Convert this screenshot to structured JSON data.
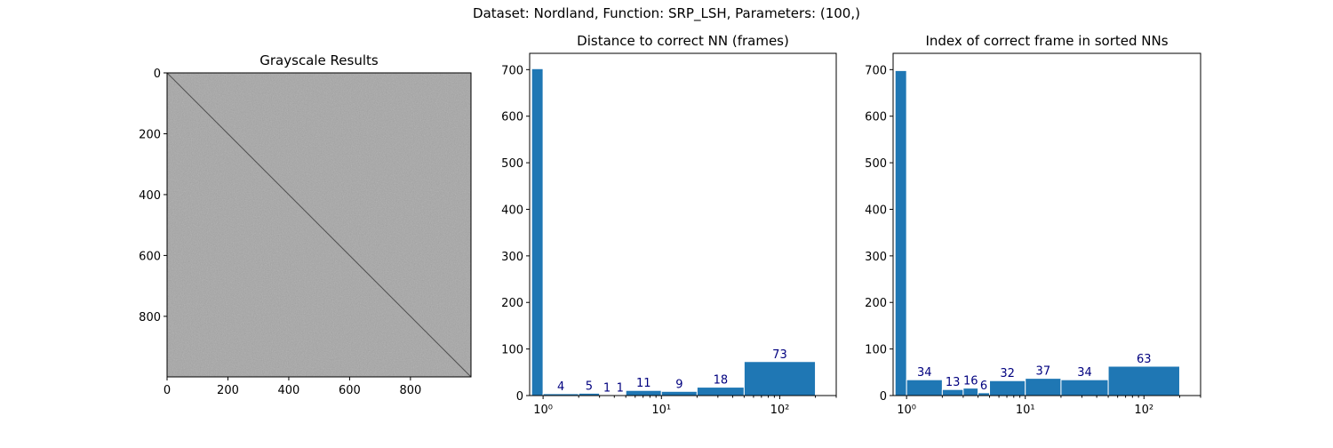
{
  "suptitle": "Dataset:  Nordland,  Function:  SRP_LSH, Parameters: (100,)",
  "colors": {
    "bar": "#1f77b4",
    "bar_edge": "#ffffff",
    "label": "#00007f",
    "image_bg": "#a6a6a6",
    "diagonal": "#505050"
  },
  "chart_data": [
    {
      "type": "heatmap",
      "title": "Grayscale Results",
      "xlim": [
        0,
        999
      ],
      "ylim": [
        999,
        0
      ],
      "xticks": [
        0,
        200,
        400,
        600,
        800
      ],
      "yticks": [
        0,
        200,
        400,
        600,
        800
      ],
      "colormap": "gray",
      "feature": "diagonal"
    },
    {
      "type": "bar",
      "title": "Distance to correct NN (frames)",
      "xscale": "log",
      "xlim": [
        0.77,
        300
      ],
      "ylim": [
        0,
        735
      ],
      "yticks": [
        0,
        100,
        200,
        300,
        400,
        500,
        600,
        700
      ],
      "xticks": [
        {
          "value": 1,
          "label": "10⁰"
        },
        {
          "value": 10,
          "label": "10¹"
        },
        {
          "value": 100,
          "label": "10²"
        }
      ],
      "bins": [
        {
          "x0": 0.8,
          "x1": 1.0,
          "value": 702,
          "label": ""
        },
        {
          "x0": 1.0,
          "x1": 2.0,
          "value": 4,
          "label": "4"
        },
        {
          "x0": 2.0,
          "x1": 3.0,
          "value": 5,
          "label": "5"
        },
        {
          "x0": 3.0,
          "x1": 4.0,
          "value": 1,
          "label": "1"
        },
        {
          "x0": 4.0,
          "x1": 5.0,
          "value": 1,
          "label": "1"
        },
        {
          "x0": 5.0,
          "x1": 10.0,
          "value": 11,
          "label": "11"
        },
        {
          "x0": 10.0,
          "x1": 20.0,
          "value": 9,
          "label": "9"
        },
        {
          "x0": 20.0,
          "x1": 50.0,
          "value": 18,
          "label": "18"
        },
        {
          "x0": 50.0,
          "x1": 200.0,
          "value": 73,
          "label": "73"
        }
      ]
    },
    {
      "type": "bar",
      "title": "Index of correct frame in sorted NNs",
      "xscale": "log",
      "xlim": [
        0.77,
        300
      ],
      "ylim": [
        0,
        735
      ],
      "yticks": [
        0,
        100,
        200,
        300,
        400,
        500,
        600,
        700
      ],
      "xticks": [
        {
          "value": 1,
          "label": "10⁰"
        },
        {
          "value": 10,
          "label": "10¹"
        },
        {
          "value": 100,
          "label": "10²"
        }
      ],
      "bins": [
        {
          "x0": 0.8,
          "x1": 1.0,
          "value": 698,
          "label": ""
        },
        {
          "x0": 1.0,
          "x1": 2.0,
          "value": 34,
          "label": "34"
        },
        {
          "x0": 2.0,
          "x1": 3.0,
          "value": 13,
          "label": "13"
        },
        {
          "x0": 3.0,
          "x1": 4.0,
          "value": 16,
          "label": "16"
        },
        {
          "x0": 4.0,
          "x1": 5.0,
          "value": 6,
          "label": "6"
        },
        {
          "x0": 5.0,
          "x1": 10.0,
          "value": 32,
          "label": "32"
        },
        {
          "x0": 10.0,
          "x1": 20.0,
          "value": 37,
          "label": "37"
        },
        {
          "x0": 20.0,
          "x1": 50.0,
          "value": 34,
          "label": "34"
        },
        {
          "x0": 50.0,
          "x1": 200.0,
          "value": 63,
          "label": "63"
        }
      ]
    }
  ]
}
